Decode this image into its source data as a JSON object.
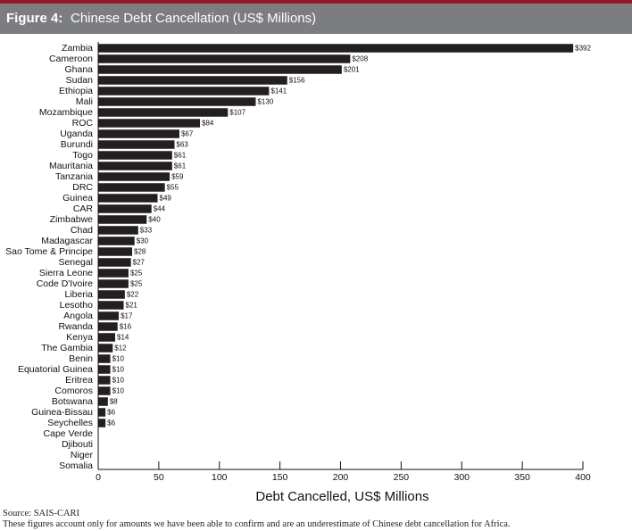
{
  "header": {
    "figure_label": "Figure 4:",
    "title": "Chinese Debt Cancellation (US$ Millions)"
  },
  "colors": {
    "bar": "#231f20",
    "header_bg": "#7b7d80",
    "top_rule": "#8c1d28"
  },
  "chart_data": {
    "type": "bar",
    "orientation": "horizontal",
    "title": "Chinese Debt Cancellation (US$ Millions)",
    "xlabel": "Debt Cancelled, US$ Millions",
    "ylabel": "",
    "xlim": [
      0,
      400
    ],
    "xticks": [
      0,
      50,
      100,
      150,
      200,
      250,
      300,
      350,
      400
    ],
    "grid": false,
    "categories": [
      "Zambia",
      "Cameroon",
      "Ghana",
      "Sudan",
      "Ethiopia",
      "Mali",
      "Mozambique",
      "ROC",
      "Uganda",
      "Burundi",
      "Togo",
      "Mauritania",
      "Tanzania",
      "DRC",
      "Guinea",
      "CAR",
      "Zimbabwe",
      "Chad",
      "Madagascar",
      "Sao Tome & Principe",
      "Senegal",
      "Sierra Leone",
      "Code D'Ivoire",
      "Liberia",
      "Lesotho",
      "Angola",
      "Rwanda",
      "Kenya",
      "The Gambia",
      "Benin",
      "Equatorial Guinea",
      "Eritrea",
      "Comoros",
      "Botswana",
      "Guinea-Bissau",
      "Seychelles",
      "Cape Verde",
      "Djibouti",
      "Niger",
      "Somalia"
    ],
    "values": [
      392,
      208,
      201,
      156,
      141,
      130,
      107,
      84,
      67,
      63,
      61,
      61,
      59,
      55,
      49,
      44,
      40,
      33,
      30,
      28,
      27,
      25,
      25,
      22,
      21,
      17,
      16,
      14,
      12,
      10,
      10,
      10,
      10,
      8,
      6,
      6,
      null,
      null,
      null,
      null
    ],
    "data_labels": [
      "$392",
      "$208",
      "$201",
      "$156",
      "$141",
      "$130",
      "$107",
      "$84",
      "$67",
      "$63",
      "$61",
      "$61",
      "$59",
      "$55",
      "$49",
      "$44",
      "$40",
      "$33",
      "$30",
      "$28",
      "$27",
      "$25",
      "$25",
      "$22",
      "$21",
      "$17",
      "$16",
      "$14",
      "$12",
      "$10",
      "$10",
      "$10",
      "$10",
      "$8",
      "$6",
      "$6",
      "",
      "",
      "",
      ""
    ]
  },
  "footer": {
    "source": "Source: SAIS-CARI",
    "note": "These figures account only for amounts we have been able to confirm and are an underestimate of Chinese debt cancellation for Africa."
  }
}
